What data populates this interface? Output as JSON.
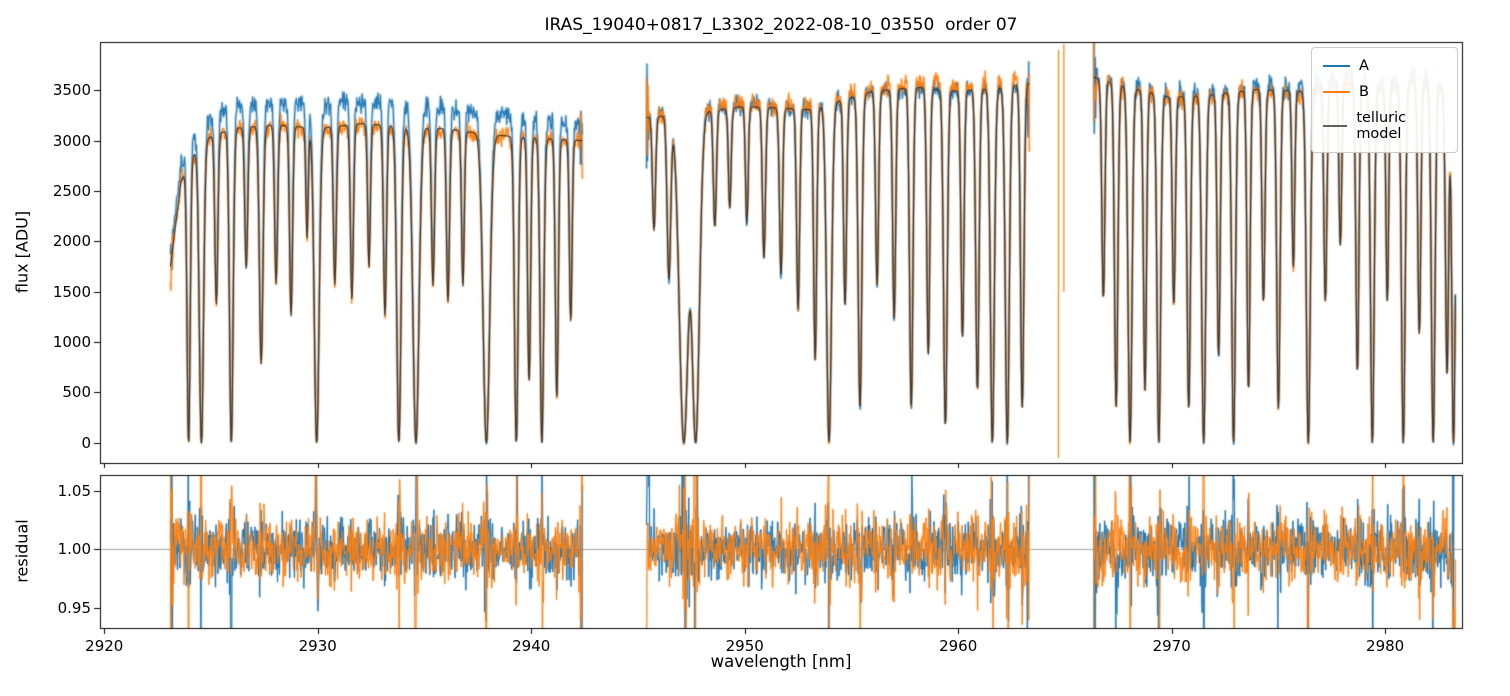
{
  "chart_data": {
    "type": "line",
    "title": "IRAS_19040+0817_L3302_2022-08-10_03550  order 07",
    "xlabel": "wavelength [nm]",
    "top_ylabel": "flux [ADU]",
    "bottom_ylabel": "residual",
    "xlim": [
      2919.8,
      2983.6
    ],
    "top_ylim": [
      -200,
      3980
    ],
    "bottom_ylim": [
      0.933,
      1.0635
    ],
    "x_ticks": [
      2920,
      2930,
      2940,
      2950,
      2960,
      2970,
      2980
    ],
    "top_y_ticks": [
      0,
      500,
      1000,
      1500,
      2000,
      2500,
      3000,
      3500
    ],
    "bottom_y_ticks": [
      "0.95",
      "1.00",
      "1.05"
    ],
    "bottom_y_tick_values": [
      0.95,
      1.0,
      1.05
    ],
    "refline_y": 1.0,
    "legend": [
      {
        "label": "A",
        "color": "#1f77b4"
      },
      {
        "label": "B",
        "color": "#ff7f0e"
      },
      {
        "label": "telluric model",
        "color": "#606060"
      }
    ],
    "colors": {
      "A": "#1f77b4",
      "B": "#ff7f0e",
      "model": "#333333",
      "refline": "#999999"
    },
    "segments": [
      [
        2923.1,
        2942.4
      ],
      [
        2945.4,
        2963.35
      ],
      [
        2966.35,
        2983.3
      ]
    ],
    "continuum": [
      [
        2923.1,
        1750
      ],
      [
        2923.6,
        2600
      ],
      [
        2924.5,
        3000
      ],
      [
        2926,
        3120
      ],
      [
        2928,
        3160
      ],
      [
        2930,
        3120
      ],
      [
        2932,
        3170
      ],
      [
        2934,
        3140
      ],
      [
        2936,
        3120
      ],
      [
        2938,
        3060
      ],
      [
        2940,
        3030
      ],
      [
        2942.4,
        3000
      ],
      [
        2945.4,
        3230
      ],
      [
        2947,
        3260
      ],
      [
        2950,
        3340
      ],
      [
        2953,
        3310
      ],
      [
        2956,
        3490
      ],
      [
        2958,
        3530
      ],
      [
        2960,
        3490
      ],
      [
        2962,
        3530
      ],
      [
        2963.35,
        3570
      ],
      [
        2966.35,
        3630
      ],
      [
        2968,
        3530
      ],
      [
        2970,
        3430
      ],
      [
        2972,
        3460
      ],
      [
        2974,
        3510
      ],
      [
        2976,
        3490
      ],
      [
        2978,
        3570
      ],
      [
        2980,
        3530
      ],
      [
        2981.5,
        3600
      ],
      [
        2982.5,
        3560
      ],
      [
        2983.0,
        3350
      ],
      [
        2983.3,
        2600
      ]
    ],
    "ratio_A": [
      [
        2923.1,
        1.06
      ],
      [
        2926,
        1.075
      ],
      [
        2934,
        1.07
      ],
      [
        2940,
        1.06
      ],
      [
        2942.4,
        1.05
      ],
      [
        2945.4,
        1.01
      ],
      [
        2950,
        1.005
      ],
      [
        2955,
        1.0
      ],
      [
        2963.35,
        1.0
      ],
      [
        2966.35,
        1.005
      ],
      [
        2972,
        1.01
      ],
      [
        2978,
        1.015
      ],
      [
        2983.3,
        1.01
      ]
    ],
    "ratio_B": [
      [
        2923.1,
        1.0
      ],
      [
        2934,
        0.995
      ],
      [
        2942.4,
        1.0
      ],
      [
        2945.4,
        1.005
      ],
      [
        2952,
        1.01
      ],
      [
        2958,
        1.015
      ],
      [
        2963.35,
        1.015
      ],
      [
        2966.35,
        1.0
      ],
      [
        2975,
        0.995
      ],
      [
        2983.3,
        1.0
      ]
    ],
    "absorption_lines": [
      [
        2923.95,
        1.0,
        0.1
      ],
      [
        2924.55,
        1.0,
        0.14
      ],
      [
        2925.25,
        0.55,
        0.1
      ],
      [
        2925.95,
        1.0,
        0.12
      ],
      [
        2926.65,
        0.45,
        0.1
      ],
      [
        2927.35,
        0.75,
        0.12
      ],
      [
        2928.05,
        0.5,
        0.1
      ],
      [
        2928.75,
        0.6,
        0.1
      ],
      [
        2929.5,
        0.35,
        0.08
      ],
      [
        2929.95,
        1.0,
        0.16
      ],
      [
        2930.8,
        0.5,
        0.1
      ],
      [
        2931.6,
        0.55,
        0.1
      ],
      [
        2932.4,
        0.45,
        0.09
      ],
      [
        2933.15,
        0.6,
        0.1
      ],
      [
        2933.8,
        1.0,
        0.14
      ],
      [
        2934.6,
        1.0,
        0.2
      ],
      [
        2935.4,
        0.5,
        0.1
      ],
      [
        2936.1,
        0.55,
        0.1
      ],
      [
        2936.8,
        0.5,
        0.09
      ],
      [
        2937.9,
        1.0,
        0.22
      ],
      [
        2939.3,
        1.0,
        0.12
      ],
      [
        2939.9,
        0.8,
        0.1
      ],
      [
        2940.5,
        1.0,
        0.12
      ],
      [
        2941.2,
        0.85,
        0.1
      ],
      [
        2941.85,
        0.6,
        0.09
      ],
      [
        2945.75,
        0.35,
        0.1
      ],
      [
        2946.45,
        0.5,
        0.12
      ],
      [
        2947.15,
        1.0,
        0.3
      ],
      [
        2947.7,
        1.0,
        0.25
      ],
      [
        2948.6,
        0.35,
        0.1
      ],
      [
        2949.3,
        0.3,
        0.09
      ],
      [
        2950.1,
        0.35,
        0.09
      ],
      [
        2950.9,
        0.45,
        0.1
      ],
      [
        2951.7,
        0.5,
        0.1
      ],
      [
        2952.5,
        0.6,
        0.1
      ],
      [
        2953.3,
        0.75,
        0.1
      ],
      [
        2953.95,
        1.0,
        0.16
      ],
      [
        2954.7,
        0.6,
        0.1
      ],
      [
        2955.4,
        0.9,
        0.12
      ],
      [
        2956.2,
        0.55,
        0.1
      ],
      [
        2957.0,
        0.65,
        0.1
      ],
      [
        2957.8,
        0.9,
        0.11
      ],
      [
        2958.6,
        0.75,
        0.1
      ],
      [
        2959.4,
        0.95,
        0.12
      ],
      [
        2960.2,
        0.7,
        0.1
      ],
      [
        2960.9,
        0.85,
        0.11
      ],
      [
        2961.6,
        1.0,
        0.13
      ],
      [
        2962.3,
        1.0,
        0.13
      ],
      [
        2963.0,
        0.9,
        0.11
      ],
      [
        2966.8,
        0.6,
        0.1
      ],
      [
        2967.4,
        0.9,
        0.11
      ],
      [
        2968.05,
        1.0,
        0.13
      ],
      [
        2968.75,
        0.85,
        0.1
      ],
      [
        2969.4,
        1.0,
        0.12
      ],
      [
        2970.1,
        0.6,
        0.1
      ],
      [
        2970.8,
        0.9,
        0.11
      ],
      [
        2971.5,
        1.0,
        0.13
      ],
      [
        2972.2,
        0.75,
        0.1
      ],
      [
        2972.9,
        1.0,
        0.12
      ],
      [
        2973.6,
        0.85,
        0.1
      ],
      [
        2974.3,
        0.6,
        0.1
      ],
      [
        2975.0,
        0.9,
        0.11
      ],
      [
        2975.7,
        0.5,
        0.09
      ],
      [
        2976.4,
        1.0,
        0.13
      ],
      [
        2977.2,
        0.6,
        0.1
      ],
      [
        2977.9,
        0.45,
        0.09
      ],
      [
        2978.7,
        0.8,
        0.1
      ],
      [
        2979.4,
        1.0,
        0.12
      ],
      [
        2980.1,
        0.6,
        0.09
      ],
      [
        2980.85,
        1.0,
        0.12
      ],
      [
        2981.6,
        0.7,
        0.1
      ],
      [
        2982.25,
        1.0,
        0.12
      ],
      [
        2982.9,
        0.8,
        0.1
      ],
      [
        2983.2,
        1.0,
        0.1
      ]
    ],
    "b_spikes": [
      [
        2964.7,
        -150,
        3900
      ],
      [
        2964.95,
        1500,
        3960
      ]
    ],
    "noise": {
      "top_mult": 0.014,
      "top_add": 12,
      "residual": 0.012,
      "edge_boost": 8,
      "seed_A": 101,
      "seed_B": 202
    }
  }
}
